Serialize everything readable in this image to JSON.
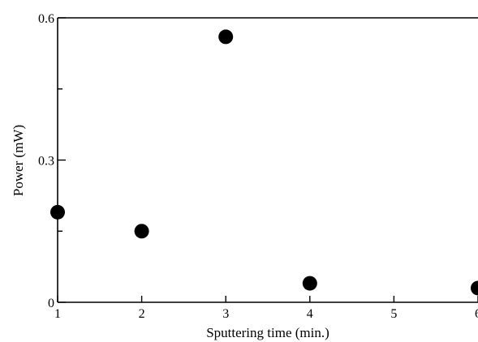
{
  "chart_data": {
    "type": "scatter",
    "title": "",
    "xlabel": "Sputtering time (min.)",
    "ylabel": "Power (mW)",
    "xlim": [
      1,
      6
    ],
    "ylim": [
      0,
      0.6
    ],
    "x_ticks": [
      1,
      2,
      3,
      4,
      5,
      6
    ],
    "x_tick_labels": [
      "1",
      "2",
      "3",
      "4",
      "5",
      "6"
    ],
    "y_ticks": [
      0,
      0.3,
      0.6
    ],
    "y_tick_labels": [
      "0",
      "0.3",
      "0.6"
    ],
    "grid": false,
    "legend": "none",
    "marker_color": "#000000",
    "points": [
      {
        "x": 1,
        "y": 0.19
      },
      {
        "x": 2,
        "y": 0.15
      },
      {
        "x": 3,
        "y": 0.56
      },
      {
        "x": 4,
        "y": 0.04
      },
      {
        "x": 6,
        "y": 0.03
      }
    ]
  }
}
